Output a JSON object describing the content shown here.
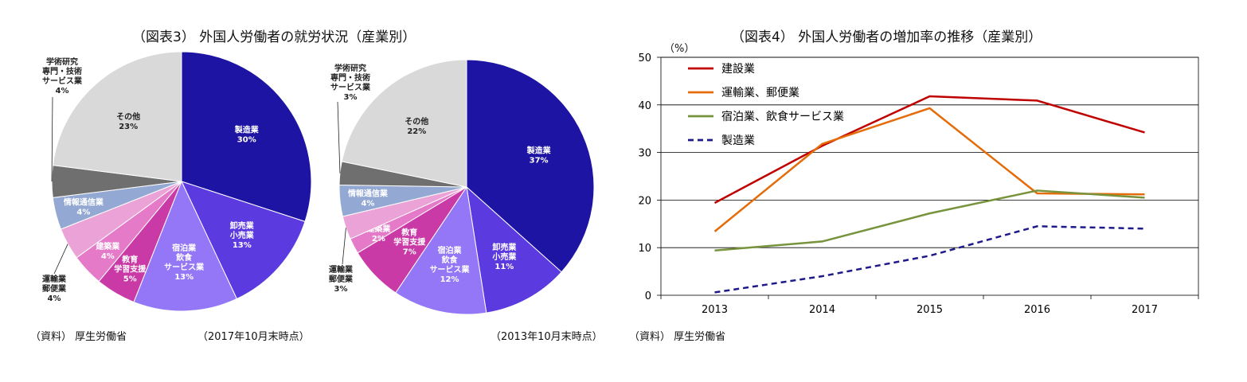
{
  "fig3": {
    "title": "（図表3） 外国人労働者の就労状況（産業別）",
    "source": "（資料） 厚生労働省",
    "caption_2017": "（2017年10月末時点）",
    "caption_2013": "（2013年10月末時点）"
  },
  "fig4": {
    "title": "（図表4） 外国人労働者の増加率の推移（産業別）",
    "source": "（資料） 厚生労働省",
    "yunit": "（%）"
  },
  "chart_data": [
    {
      "type": "pie",
      "title": "（2017年10月末時点）",
      "slices": [
        {
          "lines": [
            "製造業",
            "30%"
          ],
          "value": 30,
          "color": "#1e14a3",
          "label_color": "#ffffff"
        },
        {
          "lines": [
            "卸売業",
            "小売業",
            "13%"
          ],
          "value": 13,
          "color": "#5b3adf",
          "label_color": "#ffffff"
        },
        {
          "lines": [
            "宿泊業",
            "飲食",
            "サービス業",
            "13%"
          ],
          "value": 13,
          "color": "#9377f6",
          "label_color": "#ffffff"
        },
        {
          "lines": [
            "教育",
            "学習支援",
            "5%"
          ],
          "value": 5,
          "color": "#c93aa6",
          "label_color": "#ffffff"
        },
        {
          "lines": [
            "建築業",
            "4%"
          ],
          "value": 4,
          "color": "#e47ac8",
          "label_color": "#ffffff"
        },
        {
          "lines": [
            "運輸業",
            "郵便業",
            "4%"
          ],
          "value": 4,
          "color": "#eaa2d7",
          "label_color": "#222222",
          "outside": true
        },
        {
          "lines": [
            "情報通信業",
            "4%"
          ],
          "value": 4,
          "color": "#93a9d3",
          "label_color": "#ffffff"
        },
        {
          "lines": [
            "学術研究",
            "専門・技術",
            "サービス業",
            "4%"
          ],
          "value": 4,
          "color": "#6f6f6f",
          "label_color": "#222222",
          "outside": true
        },
        {
          "lines": [
            "その他",
            "23%"
          ],
          "value": 23,
          "color": "#d9d9d9",
          "label_color": "#222222"
        }
      ]
    },
    {
      "type": "pie",
      "title": "（2013年10月末時点）",
      "slices": [
        {
          "lines": [
            "製造業",
            "37%"
          ],
          "value": 37,
          "color": "#1e14a3",
          "label_color": "#ffffff"
        },
        {
          "lines": [
            "卸売業",
            "小売業",
            "11%"
          ],
          "value": 11,
          "color": "#5b3adf",
          "label_color": "#ffffff"
        },
        {
          "lines": [
            "宿泊業",
            "飲食",
            "サービス業",
            "12%"
          ],
          "value": 12,
          "color": "#9377f6",
          "label_color": "#ffffff"
        },
        {
          "lines": [
            "教育",
            "学習支援",
            "7%"
          ],
          "value": 7,
          "color": "#c93aa6",
          "label_color": "#ffffff"
        },
        {
          "lines": [
            "建築業",
            "2%"
          ],
          "value": 2,
          "color": "#e47ac8",
          "label_color": "#ffffff"
        },
        {
          "lines": [
            "運輸業",
            "郵便業",
            "3%"
          ],
          "value": 3,
          "color": "#eaa2d7",
          "label_color": "#222222",
          "outside": true
        },
        {
          "lines": [
            "情報通信業",
            "4%"
          ],
          "value": 4,
          "color": "#93a9d3",
          "label_color": "#ffffff"
        },
        {
          "lines": [
            "学術研究",
            "専門・技術",
            "サービス業",
            "3%"
          ],
          "value": 3,
          "color": "#6f6f6f",
          "label_color": "#222222",
          "outside": true
        },
        {
          "lines": [
            "その他",
            "22%"
          ],
          "value": 22,
          "color": "#d9d9d9",
          "label_color": "#222222"
        }
      ]
    },
    {
      "type": "line",
      "x": [
        "2013",
        "2014",
        "2015",
        "2016",
        "2017"
      ],
      "ylim": [
        0,
        50
      ],
      "yticks": [
        0,
        10,
        20,
        30,
        40,
        50
      ],
      "ylabel": "（%）",
      "grid": true,
      "legend": "top-left",
      "series": [
        {
          "name": "建設業",
          "values": [
            19.4,
            31.4,
            41.8,
            40.9,
            34.2
          ],
          "color": "#c00000",
          "dash": false
        },
        {
          "name": "運輸業、郵便業",
          "values": [
            13.4,
            31.8,
            39.3,
            21.4,
            21.2
          ],
          "color": "#e46c0a",
          "dash": false
        },
        {
          "name": "宿泊業、飲食サービス業",
          "values": [
            9.4,
            11.3,
            17.2,
            22.0,
            20.5
          ],
          "color": "#77933c",
          "dash": false
        },
        {
          "name": "製造業",
          "values": [
            0.6,
            4.0,
            8.3,
            14.5,
            14.0
          ],
          "color": "#1f1a8a",
          "dash": true
        }
      ]
    }
  ]
}
